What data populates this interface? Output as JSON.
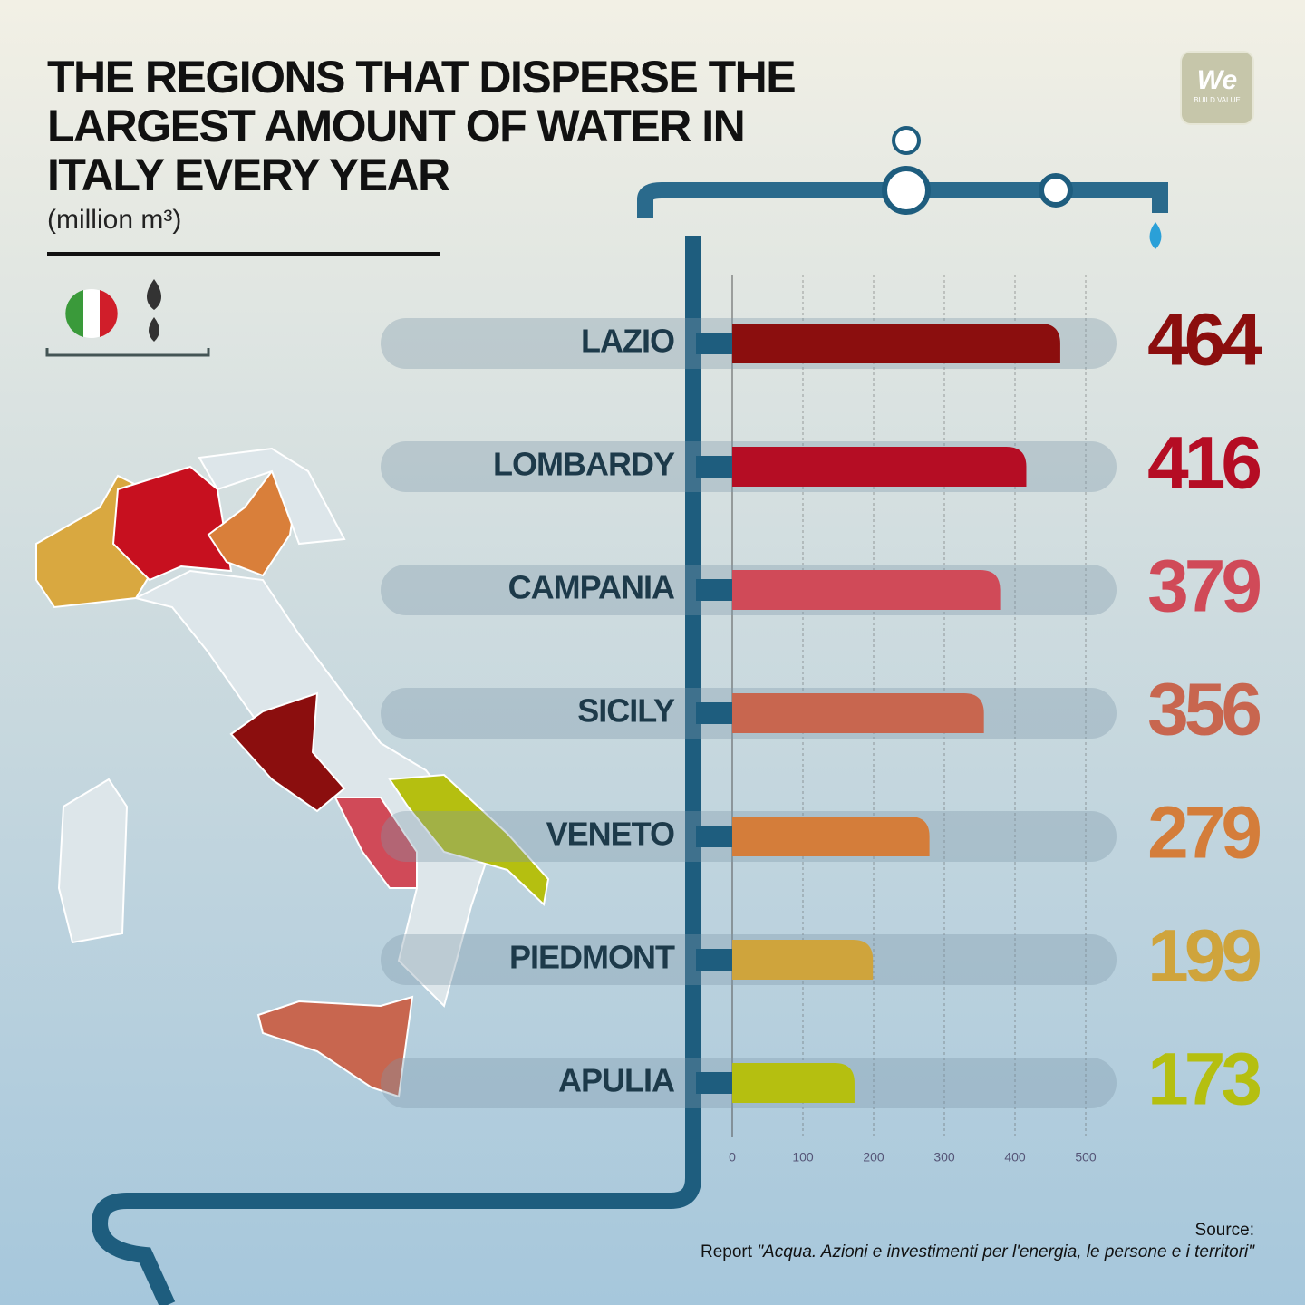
{
  "chart_data": {
    "type": "bar",
    "orientation": "horizontal",
    "title": "THE REGIONS THAT DISPERSE THE LARGEST AMOUNT OF WATER IN ITALY EVERY YEAR",
    "subtitle": "(million m³)",
    "categories": [
      "LAZIO",
      "LOMBARDY",
      "CAMPANIA",
      "SICILY",
      "VENETO",
      "PIEDMONT",
      "APULIA"
    ],
    "values": [
      464,
      416,
      379,
      356,
      279,
      199,
      173
    ],
    "colors": [
      "#8b0e0e",
      "#b50d24",
      "#d04a58",
      "#c8664f",
      "#d47d3a",
      "#cfa43c",
      "#b5bf10"
    ],
    "xlim": [
      0,
      500
    ],
    "xticks": [
      0,
      100,
      200,
      300,
      400,
      500
    ],
    "grid": true,
    "logo": {
      "mark": "We",
      "tagline": "BUILD VALUE"
    },
    "source_label": "Source:",
    "source_prefix": "Report ",
    "source_title": "\"Acqua. Azioni e investimenti per l'energia, le persone e i territori\""
  }
}
